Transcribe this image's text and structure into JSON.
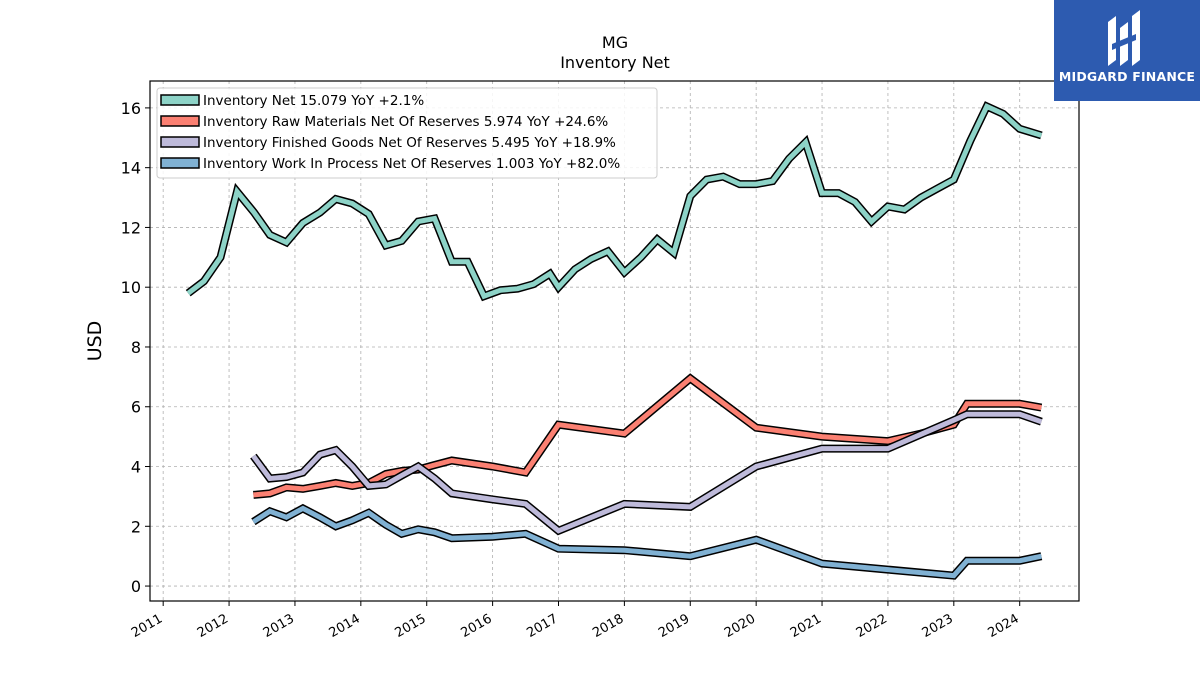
{
  "chart_data": {
    "type": "line",
    "title": "MG",
    "subtitle": "Inventory Net",
    "xlabel": "",
    "ylabel": "USD",
    "ylim": [
      -0.5,
      16.9
    ],
    "xlim": [
      2010.8,
      2024.9
    ],
    "yticks": [
      0,
      2,
      4,
      6,
      8,
      10,
      12,
      14,
      16
    ],
    "xticks": [
      "2011",
      "2012",
      "2013",
      "2014",
      "2015",
      "2016",
      "2017",
      "2018",
      "2019",
      "2020",
      "2021",
      "2022",
      "2023",
      "2024"
    ],
    "grid": true,
    "legend_position": "top-left",
    "series": [
      {
        "name": "Inventory Net  15.079 YoY +2.1%",
        "color": "#8dd3c7",
        "points": [
          [
            2011.38,
            9.8
          ],
          [
            2011.62,
            10.2
          ],
          [
            2011.87,
            11.0
          ],
          [
            2012.12,
            13.2
          ],
          [
            2012.38,
            12.5
          ],
          [
            2012.62,
            11.75
          ],
          [
            2012.87,
            11.5
          ],
          [
            2013.12,
            12.15
          ],
          [
            2013.38,
            12.5
          ],
          [
            2013.62,
            12.95
          ],
          [
            2013.87,
            12.8
          ],
          [
            2014.12,
            12.45
          ],
          [
            2014.38,
            11.4
          ],
          [
            2014.62,
            11.55
          ],
          [
            2014.87,
            12.2
          ],
          [
            2015.12,
            12.3
          ],
          [
            2015.38,
            10.85
          ],
          [
            2015.62,
            10.85
          ],
          [
            2015.87,
            9.7
          ],
          [
            2016.12,
            9.9
          ],
          [
            2016.38,
            9.95
          ],
          [
            2016.62,
            10.1
          ],
          [
            2016.87,
            10.45
          ],
          [
            2017.0,
            10.0
          ],
          [
            2017.25,
            10.6
          ],
          [
            2017.5,
            10.95
          ],
          [
            2017.75,
            11.2
          ],
          [
            2018.0,
            10.5
          ],
          [
            2018.25,
            11.0
          ],
          [
            2018.5,
            11.6
          ],
          [
            2018.75,
            11.15
          ],
          [
            2019.0,
            13.05
          ],
          [
            2019.25,
            13.6
          ],
          [
            2019.5,
            13.7
          ],
          [
            2019.75,
            13.45
          ],
          [
            2020.0,
            13.45
          ],
          [
            2020.25,
            13.55
          ],
          [
            2020.5,
            14.3
          ],
          [
            2020.75,
            14.85
          ],
          [
            2021.0,
            13.15
          ],
          [
            2021.25,
            13.15
          ],
          [
            2021.5,
            12.85
          ],
          [
            2021.75,
            12.2
          ],
          [
            2022.0,
            12.7
          ],
          [
            2022.25,
            12.6
          ],
          [
            2022.5,
            13.0
          ],
          [
            2022.75,
            13.3
          ],
          [
            2023.0,
            13.6
          ],
          [
            2023.25,
            14.9
          ],
          [
            2023.5,
            16.05
          ],
          [
            2023.75,
            15.8
          ],
          [
            2024.0,
            15.3
          ],
          [
            2024.33,
            15.08
          ]
        ]
      },
      {
        "name": "Inventory Raw Materials Net Of Reserves  5.974 YoY +24.6%",
        "color": "#fb8072",
        "points": [
          [
            2012.37,
            3.05
          ],
          [
            2012.62,
            3.1
          ],
          [
            2012.87,
            3.3
          ],
          [
            2013.12,
            3.25
          ],
          [
            2013.38,
            3.35
          ],
          [
            2013.62,
            3.45
          ],
          [
            2013.87,
            3.35
          ],
          [
            2014.12,
            3.45
          ],
          [
            2014.38,
            3.75
          ],
          [
            2014.62,
            3.85
          ],
          [
            2014.87,
            3.9
          ],
          [
            2015.12,
            4.05
          ],
          [
            2015.38,
            4.2
          ],
          [
            2016.0,
            4.0
          ],
          [
            2016.5,
            3.8
          ],
          [
            2017.0,
            5.4
          ],
          [
            2018.0,
            5.1
          ],
          [
            2019.0,
            6.95
          ],
          [
            2020.0,
            5.3
          ],
          [
            2021.0,
            5.0
          ],
          [
            2022.0,
            4.85
          ],
          [
            2022.5,
            5.1
          ],
          [
            2023.0,
            5.4
          ],
          [
            2023.2,
            6.1
          ],
          [
            2024.0,
            6.1
          ],
          [
            2024.33,
            5.97
          ]
        ]
      },
      {
        "name": "Inventory Finished Goods Net Of Reserves  5.495 YoY +18.9%",
        "color": "#bebada",
        "points": [
          [
            2012.37,
            4.35
          ],
          [
            2012.62,
            3.6
          ],
          [
            2012.87,
            3.65
          ],
          [
            2013.12,
            3.8
          ],
          [
            2013.38,
            4.4
          ],
          [
            2013.62,
            4.55
          ],
          [
            2013.87,
            4.0
          ],
          [
            2014.12,
            3.35
          ],
          [
            2014.38,
            3.4
          ],
          [
            2014.62,
            3.7
          ],
          [
            2014.87,
            4.0
          ],
          [
            2015.12,
            3.6
          ],
          [
            2015.38,
            3.1
          ],
          [
            2016.0,
            2.9
          ],
          [
            2016.5,
            2.75
          ],
          [
            2017.0,
            1.85
          ],
          [
            2018.0,
            2.75
          ],
          [
            2019.0,
            2.65
          ],
          [
            2020.0,
            4.0
          ],
          [
            2021.0,
            4.6
          ],
          [
            2022.0,
            4.6
          ],
          [
            2023.0,
            5.55
          ],
          [
            2023.2,
            5.75
          ],
          [
            2024.0,
            5.75
          ],
          [
            2024.33,
            5.5
          ]
        ]
      },
      {
        "name": "Inventory Work In Process Net Of Reserves  1.003 YoY +82.0%",
        "color": "#80b1d3",
        "points": [
          [
            2012.37,
            2.15
          ],
          [
            2012.62,
            2.5
          ],
          [
            2012.87,
            2.3
          ],
          [
            2013.12,
            2.6
          ],
          [
            2013.38,
            2.3
          ],
          [
            2013.62,
            2.0
          ],
          [
            2013.87,
            2.2
          ],
          [
            2014.12,
            2.45
          ],
          [
            2014.38,
            2.05
          ],
          [
            2014.62,
            1.75
          ],
          [
            2014.87,
            1.9
          ],
          [
            2015.12,
            1.8
          ],
          [
            2015.38,
            1.6
          ],
          [
            2016.0,
            1.65
          ],
          [
            2016.5,
            1.75
          ],
          [
            2017.0,
            1.25
          ],
          [
            2018.0,
            1.2
          ],
          [
            2019.0,
            1.0
          ],
          [
            2020.0,
            1.55
          ],
          [
            2021.0,
            0.75
          ],
          [
            2022.0,
            0.55
          ],
          [
            2023.0,
            0.35
          ],
          [
            2023.2,
            0.85
          ],
          [
            2024.0,
            0.85
          ],
          [
            2024.33,
            1.0
          ]
        ]
      }
    ]
  },
  "logo": {
    "text": "MIDGARD FINANCE",
    "background": "#2d5bb0"
  }
}
